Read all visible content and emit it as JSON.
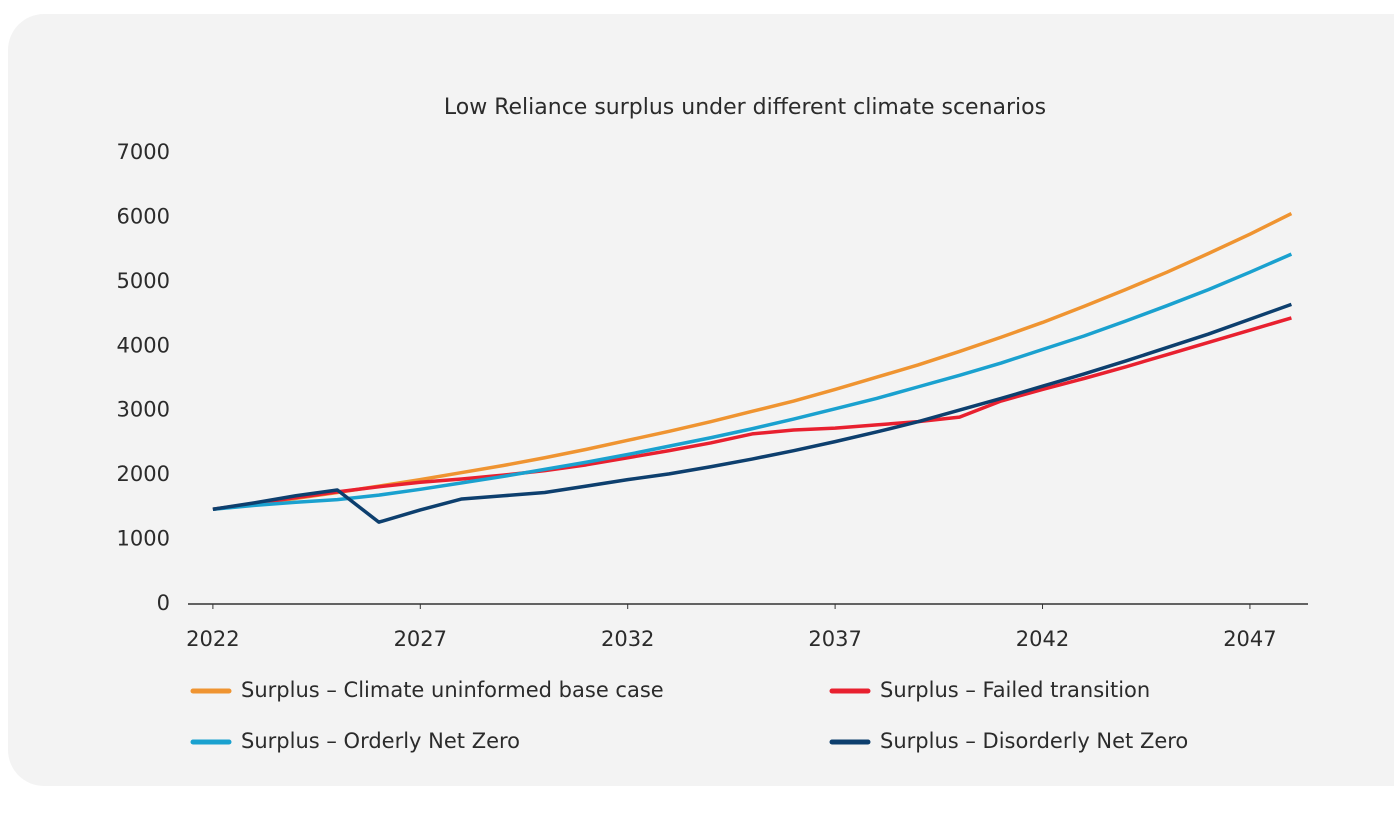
{
  "chart_data": {
    "type": "line",
    "title": "Low Reliance surplus under different climate scenarios",
    "x": [
      2022,
      2023,
      2024,
      2025,
      2026,
      2027,
      2028,
      2029,
      2030,
      2031,
      2032,
      2033,
      2034,
      2035,
      2036,
      2037,
      2038,
      2039,
      2040,
      2041,
      2042,
      2043,
      2044,
      2045,
      2046,
      2047,
      2048
    ],
    "series": [
      {
        "name": "Surplus – Climate uninformed base case",
        "color": "#ef9431",
        "values": [
          1470,
          1550,
          1640,
          1730,
          1830,
          1930,
          2040,
          2150,
          2270,
          2400,
          2540,
          2680,
          2830,
          2990,
          3150,
          3330,
          3520,
          3710,
          3920,
          4140,
          4370,
          4620,
          4880,
          5150,
          5440,
          5740,
          6060
        ]
      },
      {
        "name": "Surplus – Failed transition",
        "color": "#e8202f",
        "values": [
          1470,
          1560,
          1650,
          1740,
          1820,
          1890,
          1940,
          2000,
          2070,
          2160,
          2270,
          2380,
          2500,
          2640,
          2700,
          2730,
          2780,
          2830,
          2900,
          3150,
          3330,
          3500,
          3680,
          3870,
          4060,
          4250,
          4440
        ]
      },
      {
        "name": "Surplus – Orderly Net Zero",
        "color": "#1aa1cf",
        "values": [
          1470,
          1530,
          1580,
          1620,
          1690,
          1780,
          1880,
          1980,
          2090,
          2200,
          2320,
          2450,
          2580,
          2720,
          2870,
          3030,
          3190,
          3370,
          3550,
          3740,
          3950,
          4160,
          4390,
          4630,
          4880,
          5150,
          5430
        ]
      },
      {
        "name": "Surplus – Disorderly Net Zero",
        "color": "#0d3f6e",
        "values": [
          1470,
          1570,
          1680,
          1770,
          1270,
          1460,
          1630,
          1680,
          1730,
          1830,
          1930,
          2020,
          2130,
          2250,
          2380,
          2520,
          2670,
          2830,
          3010,
          3190,
          3380,
          3570,
          3770,
          3980,
          4190,
          4420,
          4650
        ]
      }
    ],
    "xlim": [
      2021.4,
      2048.4
    ],
    "xticks": [
      2022,
      2027,
      2032,
      2037,
      2042,
      2047
    ],
    "ylim": [
      0,
      7000
    ],
    "yticks": [
      0,
      1000,
      2000,
      3000,
      4000,
      5000,
      6000,
      7000
    ],
    "legend": "bottom"
  }
}
